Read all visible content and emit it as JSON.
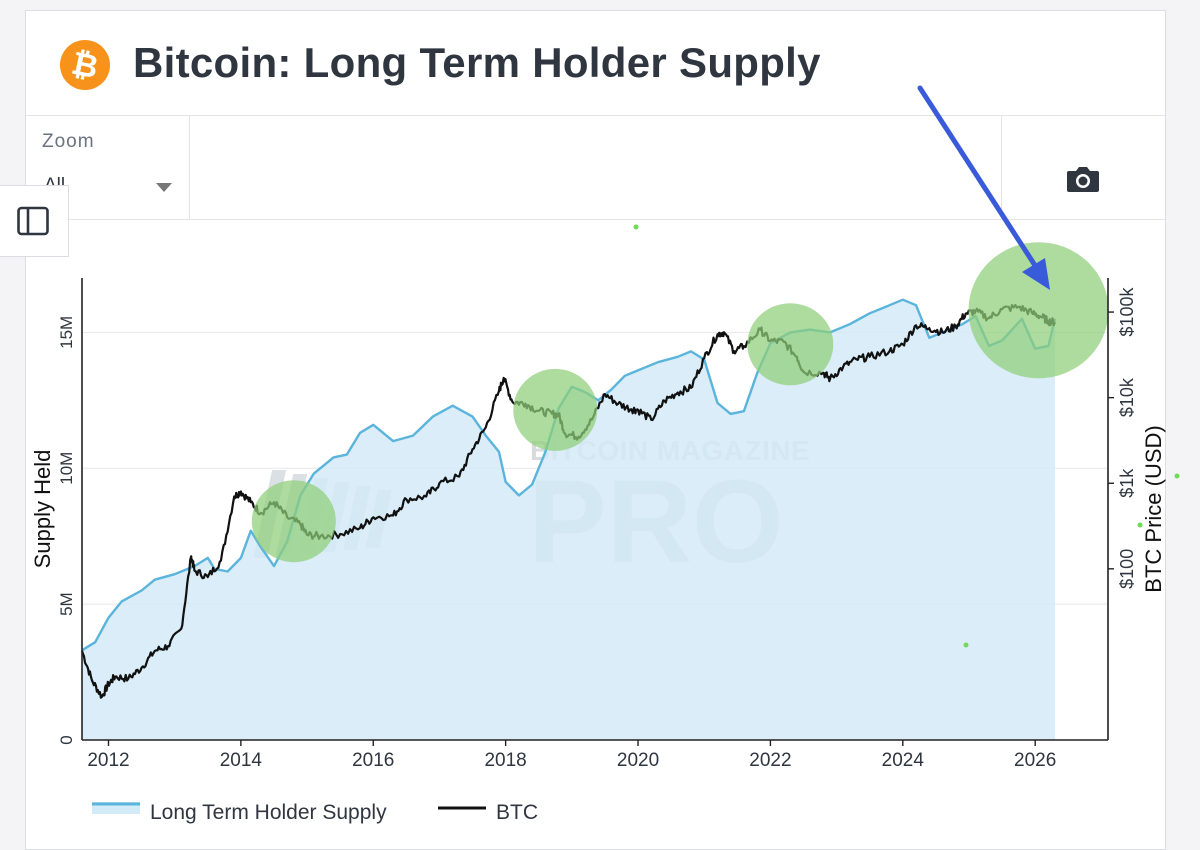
{
  "header": {
    "title": "Bitcoin: Long Term Holder Supply",
    "logo_icon": "bitcoin-logo-icon"
  },
  "toolbar": {
    "zoom_label": "Zoom",
    "zoom_value": "All",
    "camera_icon": "camera-icon",
    "sidebar_icon": "sidebar-toggle-icon"
  },
  "watermark": {
    "line1": "BITCOIN MAGAZINE",
    "line2": "PRO"
  },
  "colors": {
    "lth": "#5ab4dc",
    "lth_fill": "#d3eaf7",
    "btc": "#111111",
    "highlight": "#8fcf78",
    "arrow": "#3a5bd9",
    "brand": "#f7931a"
  },
  "chart_data": {
    "type": "line",
    "title": "Bitcoin: Long Term Holder Supply",
    "ylabel": "Supply Held",
    "y2label": "BTC Price (USD)",
    "xlim": [
      2011.6,
      2027.1
    ],
    "ylim": [
      0,
      17000000
    ],
    "y2lim_log": [
      1,
      250000
    ],
    "y2scale": "log",
    "grid": true,
    "x_ticks": [
      "2012",
      "2014",
      "2016",
      "2018",
      "2020",
      "2022",
      "2024",
      "2026"
    ],
    "y_ticks": [
      "0",
      "5M",
      "10M",
      "15M"
    ],
    "y2_ticks": [
      "$100",
      "$1k",
      "$10k",
      "$100k"
    ],
    "legend_position": "bottom-left",
    "series": [
      {
        "name": "Long Term Holder Supply",
        "axis": "left",
        "fill": true,
        "points": [
          [
            2011.6,
            3300000
          ],
          [
            2011.8,
            3600000
          ],
          [
            2012.0,
            4500000
          ],
          [
            2012.2,
            5100000
          ],
          [
            2012.5,
            5500000
          ],
          [
            2012.7,
            5900000
          ],
          [
            2013.0,
            6100000
          ],
          [
            2013.3,
            6400000
          ],
          [
            2013.5,
            6700000
          ],
          [
            2013.6,
            6300000
          ],
          [
            2013.8,
            6200000
          ],
          [
            2014.0,
            6700000
          ],
          [
            2014.15,
            7700000
          ],
          [
            2014.3,
            7100000
          ],
          [
            2014.5,
            6400000
          ],
          [
            2014.7,
            7300000
          ],
          [
            2014.9,
            9000000
          ],
          [
            2015.1,
            9800000
          ],
          [
            2015.4,
            10400000
          ],
          [
            2015.6,
            10500000
          ],
          [
            2015.8,
            11300000
          ],
          [
            2016.0,
            11600000
          ],
          [
            2016.3,
            11000000
          ],
          [
            2016.6,
            11200000
          ],
          [
            2016.9,
            11900000
          ],
          [
            2017.2,
            12300000
          ],
          [
            2017.5,
            11900000
          ],
          [
            2017.7,
            11200000
          ],
          [
            2017.9,
            10600000
          ],
          [
            2018.0,
            9500000
          ],
          [
            2018.2,
            9000000
          ],
          [
            2018.4,
            9400000
          ],
          [
            2018.6,
            10600000
          ],
          [
            2018.8,
            12200000
          ],
          [
            2019.0,
            13000000
          ],
          [
            2019.2,
            12800000
          ],
          [
            2019.4,
            12500000
          ],
          [
            2019.6,
            12900000
          ],
          [
            2019.8,
            13400000
          ],
          [
            2020.0,
            13600000
          ],
          [
            2020.3,
            13900000
          ],
          [
            2020.6,
            14100000
          ],
          [
            2020.8,
            14300000
          ],
          [
            2021.0,
            14000000
          ],
          [
            2021.2,
            12400000
          ],
          [
            2021.4,
            12000000
          ],
          [
            2021.6,
            12100000
          ],
          [
            2021.8,
            13500000
          ],
          [
            2022.0,
            14600000
          ],
          [
            2022.3,
            15000000
          ],
          [
            2022.6,
            15100000
          ],
          [
            2022.9,
            15000000
          ],
          [
            2023.2,
            15300000
          ],
          [
            2023.5,
            15700000
          ],
          [
            2023.8,
            16000000
          ],
          [
            2024.0,
            16200000
          ],
          [
            2024.2,
            16000000
          ],
          [
            2024.4,
            14800000
          ],
          [
            2024.6,
            15000000
          ],
          [
            2024.9,
            15300000
          ],
          [
            2025.1,
            15600000
          ],
          [
            2025.3,
            14500000
          ],
          [
            2025.5,
            14700000
          ],
          [
            2025.8,
            15500000
          ],
          [
            2026.0,
            14400000
          ],
          [
            2026.2,
            14500000
          ],
          [
            2026.3,
            15500000
          ]
        ]
      },
      {
        "name": "BTC",
        "axis": "right",
        "fill": false,
        "points": [
          [
            2011.6,
            11
          ],
          [
            2011.75,
            5
          ],
          [
            2011.9,
            3.2
          ],
          [
            2012.0,
            4.5
          ],
          [
            2012.1,
            5.5
          ],
          [
            2012.3,
            5.2
          ],
          [
            2012.5,
            7
          ],
          [
            2012.7,
            11
          ],
          [
            2012.9,
            12.5
          ],
          [
            2013.1,
            20
          ],
          [
            2013.25,
            140
          ],
          [
            2013.3,
            95
          ],
          [
            2013.5,
            80
          ],
          [
            2013.7,
            125
          ],
          [
            2013.9,
            700
          ],
          [
            2014.0,
            800
          ],
          [
            2014.15,
            600
          ],
          [
            2014.3,
            450
          ],
          [
            2014.5,
            600
          ],
          [
            2014.7,
            400
          ],
          [
            2014.9,
            330
          ],
          [
            2015.0,
            250
          ],
          [
            2015.2,
            240
          ],
          [
            2015.5,
            255
          ],
          [
            2015.8,
            300
          ],
          [
            2016.0,
            400
          ],
          [
            2016.3,
            420
          ],
          [
            2016.5,
            650
          ],
          [
            2016.8,
            700
          ],
          [
            2017.0,
            1000
          ],
          [
            2017.3,
            1200
          ],
          [
            2017.5,
            2500
          ],
          [
            2017.7,
            4500
          ],
          [
            2017.9,
            12000
          ],
          [
            2017.97,
            17000
          ],
          [
            2018.1,
            9000
          ],
          [
            2018.3,
            8500
          ],
          [
            2018.5,
            7000
          ],
          [
            2018.7,
            6500
          ],
          [
            2018.8,
            6300
          ],
          [
            2018.9,
            3800
          ],
          [
            2019.1,
            3500
          ],
          [
            2019.3,
            5500
          ],
          [
            2019.5,
            11000
          ],
          [
            2019.7,
            8500
          ],
          [
            2019.9,
            7300
          ],
          [
            2020.0,
            7200
          ],
          [
            2020.2,
            5500
          ],
          [
            2020.4,
            9200
          ],
          [
            2020.6,
            11500
          ],
          [
            2020.8,
            13000
          ],
          [
            2021.0,
            29000
          ],
          [
            2021.2,
            55000
          ],
          [
            2021.3,
            58000
          ],
          [
            2021.45,
            35000
          ],
          [
            2021.6,
            40000
          ],
          [
            2021.85,
            62000
          ],
          [
            2022.0,
            46000
          ],
          [
            2022.2,
            45000
          ],
          [
            2022.4,
            30000
          ],
          [
            2022.5,
            20000
          ],
          [
            2022.8,
            19500
          ],
          [
            2022.9,
            16500
          ],
          [
            2023.1,
            23000
          ],
          [
            2023.3,
            28000
          ],
          [
            2023.5,
            30000
          ],
          [
            2023.8,
            35000
          ],
          [
            2024.0,
            42000
          ],
          [
            2024.2,
            70000
          ],
          [
            2024.4,
            65000
          ],
          [
            2024.6,
            58000
          ],
          [
            2024.8,
            68000
          ],
          [
            2024.95,
            96000
          ],
          [
            2025.1,
            102000
          ],
          [
            2025.3,
            85000
          ],
          [
            2025.5,
            108000
          ],
          [
            2025.75,
            115000
          ],
          [
            2025.95,
            98000
          ],
          [
            2026.1,
            88000
          ],
          [
            2026.2,
            78000
          ],
          [
            2026.3,
            76000
          ]
        ]
      }
    ],
    "highlights": [
      {
        "x": 2014.8,
        "y2": 360
      },
      {
        "x": 2018.75,
        "y2": 7200
      },
      {
        "x": 2022.3,
        "y2": 42000
      },
      {
        "x": 2026.05,
        "y2": 105000
      }
    ],
    "legend": [
      "Long Term Holder Supply",
      "BTC"
    ]
  }
}
